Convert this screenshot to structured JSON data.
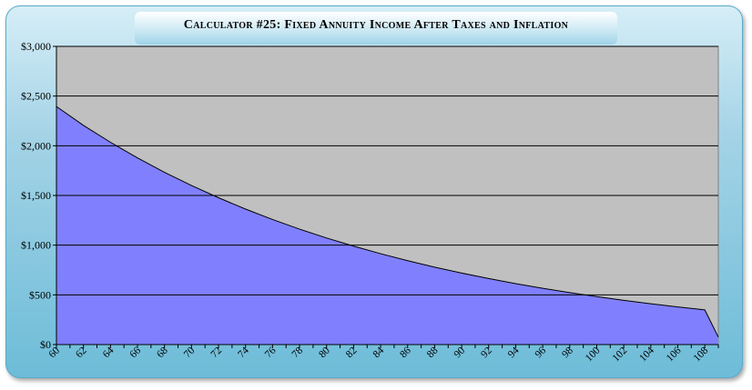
{
  "title": "Calculator #25: Fixed Annuity Income After Taxes and Inflation",
  "chart_data": {
    "type": "area",
    "title": "Calculator #25: Fixed Annuity Income After Taxes and Inflation",
    "xlabel": "",
    "ylabel": "",
    "xlim": [
      60,
      109
    ],
    "ylim": [
      0,
      3000
    ],
    "y_ticks": [
      0,
      500,
      1000,
      1500,
      2000,
      2500,
      3000
    ],
    "y_tick_labels": [
      "$0",
      "$500",
      "$1,000",
      "$1,500",
      "$2,000",
      "$2,500",
      "$3,000"
    ],
    "x_ticks": [
      60,
      62,
      64,
      66,
      68,
      70,
      72,
      74,
      76,
      78,
      80,
      82,
      84,
      86,
      88,
      90,
      92,
      94,
      96,
      98,
      100,
      102,
      104,
      106,
      108
    ],
    "x_tick_labels": [
      "60",
      "62",
      "64",
      "66",
      "68",
      "70",
      "72",
      "74",
      "76",
      "78",
      "80",
      "82",
      "84",
      "86",
      "88",
      "90",
      "92",
      "94",
      "96",
      "98",
      "100",
      "102",
      "104",
      "106",
      "108"
    ],
    "grid": "horizontal",
    "series": [
      {
        "color": "#8080ff",
        "x": [
          60,
          62,
          64,
          66,
          68,
          70,
          72,
          74,
          76,
          78,
          80,
          82,
          84,
          86,
          88,
          90,
          92,
          94,
          96,
          98,
          100,
          102,
          104,
          106,
          108,
          109
        ],
        "values": [
          2395,
          2205,
          2035,
          1878,
          1733,
          1600,
          1477,
          1363,
          1258,
          1161,
          1072,
          990,
          914,
          844,
          779,
          719,
          664,
          613,
          566,
          522,
          482,
          445,
          410,
          378,
          349,
          75
        ]
      }
    ],
    "colors": {
      "plot_background": "#c0c0c0",
      "area_fill": "#8080ff",
      "frame_top": "#d6eef7",
      "frame_bottom": "#6dbcd8"
    }
  }
}
